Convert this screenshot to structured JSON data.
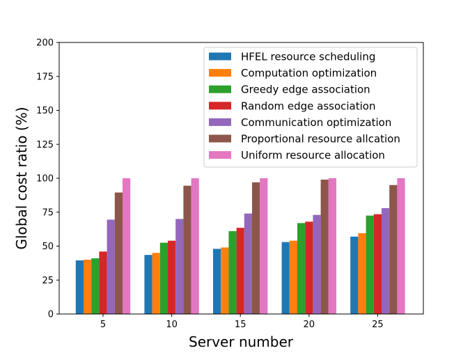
{
  "chart_data": {
    "type": "bar",
    "xlabel": "Server number",
    "ylabel": "Global cost ratio (%)",
    "categories": [
      "5",
      "10",
      "15",
      "20",
      "25"
    ],
    "ylim": [
      0,
      200
    ],
    "yticks": [
      "0",
      "25",
      "50",
      "75",
      "100",
      "125",
      "150",
      "175",
      "200"
    ],
    "grid": false,
    "legend_position": "top-right",
    "series": [
      {
        "name": "HFEL resource scheduling",
        "color": "#1f77b4",
        "values": [
          39.5,
          43.5,
          48,
          53,
          57
        ]
      },
      {
        "name": "Computation optimization",
        "color": "#ff7f0e",
        "values": [
          40,
          45,
          49,
          54,
          59.5
        ]
      },
      {
        "name": "Greedy edge association",
        "color": "#2ca02c",
        "values": [
          41,
          52.5,
          61,
          67,
          72.5
        ]
      },
      {
        "name": "Random edge association",
        "color": "#d62728",
        "values": [
          46,
          54,
          63.5,
          68,
          73.5
        ]
      },
      {
        "name": "Communication optimization",
        "color": "#9467bd",
        "values": [
          69.5,
          70,
          74,
          73,
          78
        ]
      },
      {
        "name": "Proportional resource allcation",
        "color": "#8c564b",
        "values": [
          89.5,
          94.5,
          97,
          99,
          95
        ]
      },
      {
        "name": "Uniform resource allocation",
        "color": "#e377c2",
        "values": [
          100,
          100,
          100,
          100,
          100
        ]
      }
    ]
  }
}
